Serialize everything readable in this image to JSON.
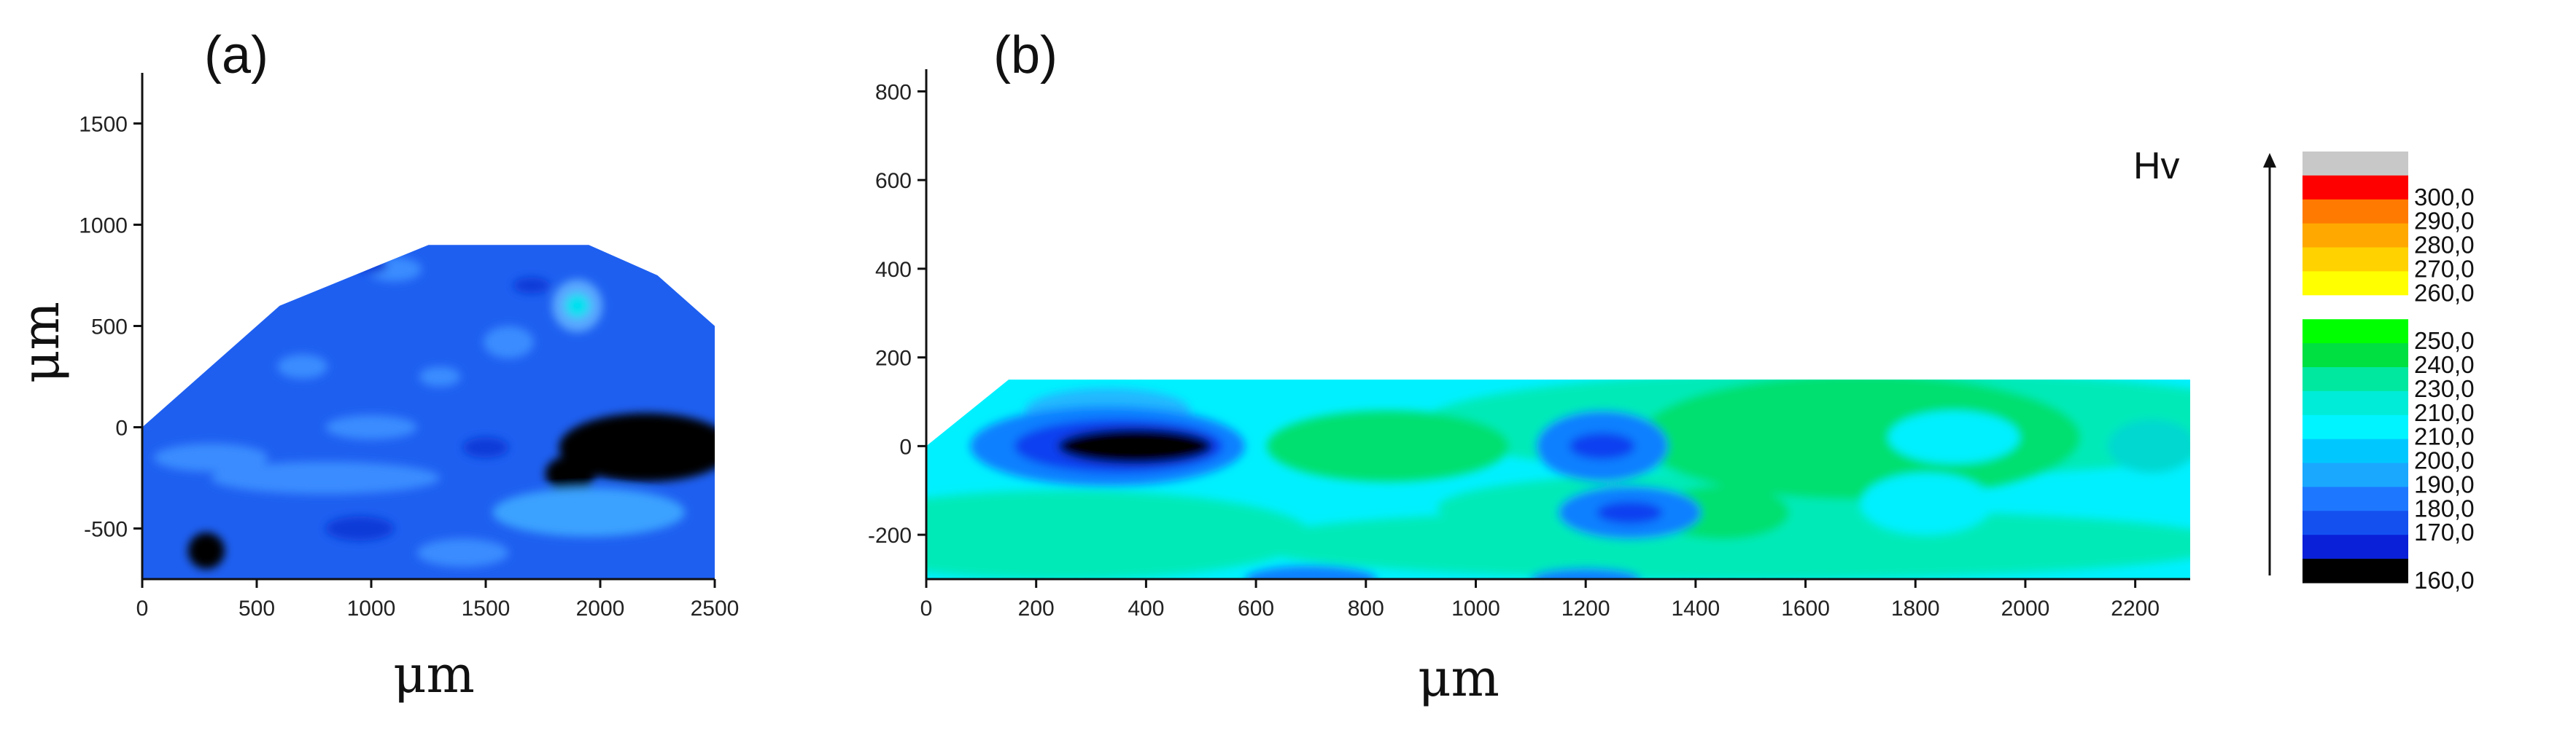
{
  "chart_data": [
    {
      "type": "heatmap",
      "panel_label": "(a)",
      "xlabel": "μm",
      "ylabel": "μm",
      "xlim": [
        0,
        2500
      ],
      "ylim": [
        -750,
        1750
      ],
      "xticks": [
        0,
        500,
        1000,
        1500,
        2000,
        2500
      ],
      "yticks": [
        -500,
        0,
        500,
        1000,
        1500
      ],
      "x_tick_labels": [
        "0",
        "500",
        "1000",
        "1500",
        "2000",
        "2500"
      ],
      "y_tick_labels": [
        "-500",
        "0",
        "500",
        "1000",
        "1500"
      ],
      "outline": [
        [
          0,
          0
        ],
        [
          600,
          600
        ],
        [
          1250,
          900
        ],
        [
          1950,
          900
        ],
        [
          2250,
          750
        ],
        [
          2500,
          500
        ],
        [
          2500,
          -750
        ],
        [
          0,
          -750
        ]
      ],
      "base_color": "#1e5ff0",
      "blobs": [
        {
          "cx": 2200,
          "cy": -100,
          "rx": 380,
          "ry": 170,
          "color": "#000000"
        },
        {
          "cx": 1870,
          "cy": -230,
          "rx": 110,
          "ry": 90,
          "color": "#000000"
        },
        {
          "cx": 280,
          "cy": -610,
          "rx": 80,
          "ry": 90,
          "color": "#000000"
        },
        {
          "cx": 1900,
          "cy": 600,
          "rx": 110,
          "ry": 130,
          "color": "#5aa8ff"
        },
        {
          "cx": 1900,
          "cy": 600,
          "rx": 55,
          "ry": 60,
          "color": "#00e0f0"
        },
        {
          "cx": 1950,
          "cy": -420,
          "rx": 420,
          "ry": 120,
          "color": "#3aa2ff"
        },
        {
          "cx": 800,
          "cy": -250,
          "rx": 500,
          "ry": 80,
          "color": "#3a8cff"
        },
        {
          "cx": 300,
          "cy": -150,
          "rx": 250,
          "ry": 70,
          "color": "#3a8cff"
        },
        {
          "cx": 1000,
          "cy": 0,
          "rx": 200,
          "ry": 60,
          "color": "#3a8cff"
        },
        {
          "cx": 700,
          "cy": 300,
          "rx": 110,
          "ry": 60,
          "color": "#3a8cff"
        },
        {
          "cx": 1300,
          "cy": 250,
          "rx": 90,
          "ry": 50,
          "color": "#3a8cff"
        },
        {
          "cx": 1600,
          "cy": 420,
          "rx": 110,
          "ry": 80,
          "color": "#3a8cff"
        },
        {
          "cx": 1100,
          "cy": 780,
          "rx": 120,
          "ry": 60,
          "color": "#3a8cff"
        },
        {
          "cx": 1400,
          "cy": -620,
          "rx": 200,
          "ry": 70,
          "color": "#3a8cff"
        },
        {
          "cx": 950,
          "cy": -500,
          "rx": 150,
          "ry": 60,
          "color": "#0a3ad8"
        },
        {
          "cx": 1000,
          "cy": 800,
          "rx": 70,
          "ry": 40,
          "color": "#0a3ad8"
        },
        {
          "cx": 1700,
          "cy": 700,
          "rx": 80,
          "ry": 40,
          "color": "#0a3ad8"
        },
        {
          "cx": 1500,
          "cy": -100,
          "rx": 100,
          "ry": 50,
          "color": "#0a3ad8"
        }
      ]
    },
    {
      "type": "heatmap",
      "panel_label": "(b)",
      "xlabel": "μm",
      "ylabel": "",
      "xlim": [
        0,
        2300
      ],
      "ylim": [
        -300,
        850
      ],
      "xticks": [
        0,
        200,
        400,
        600,
        800,
        1000,
        1200,
        1400,
        1600,
        1800,
        2000,
        2200
      ],
      "yticks": [
        -200,
        0,
        200,
        400,
        600,
        800
      ],
      "x_tick_labels": [
        "0",
        "200",
        "400",
        "600",
        "800",
        "1000",
        "1200",
        "1400",
        "1600",
        "1800",
        "2000",
        "2200"
      ],
      "y_tick_labels": [
        "-200",
        "0",
        "200",
        "400",
        "600",
        "800"
      ],
      "outline": [
        [
          0,
          0
        ],
        [
          150,
          150
        ],
        [
          2300,
          150
        ],
        [
          2300,
          -300
        ],
        [
          0,
          -300
        ]
      ],
      "base_color": "#00f0ff",
      "blobs": [
        {
          "cx": 1480,
          "cy": -220,
          "rx": 900,
          "ry": 80,
          "color": "#00eab8"
        },
        {
          "cx": 250,
          "cy": -200,
          "rx": 450,
          "ry": 100,
          "color": "#00eab8"
        },
        {
          "cx": 1700,
          "cy": 50,
          "rx": 800,
          "ry": 120,
          "color": "#00eab8"
        },
        {
          "cx": 1430,
          "cy": -140,
          "rx": 500,
          "ry": 80,
          "color": "#00eab8"
        },
        {
          "cx": 1700,
          "cy": 20,
          "rx": 400,
          "ry": 140,
          "color": "#00e070"
        },
        {
          "cx": 1450,
          "cy": -150,
          "rx": 120,
          "ry": 60,
          "color": "#00e070"
        },
        {
          "cx": 840,
          "cy": 0,
          "rx": 220,
          "ry": 80,
          "color": "#00e070"
        },
        {
          "cx": 1820,
          "cy": -130,
          "rx": 120,
          "ry": 70,
          "color": "#00f0ff"
        },
        {
          "cx": 1870,
          "cy": 20,
          "rx": 120,
          "ry": 60,
          "color": "#00f0ff"
        },
        {
          "cx": 2230,
          "cy": 0,
          "rx": 80,
          "ry": 60,
          "color": "#00d8d0"
        },
        {
          "cx": 330,
          "cy": 80,
          "rx": 150,
          "ry": 50,
          "color": "#20b8ff"
        },
        {
          "cx": 330,
          "cy": 0,
          "rx": 250,
          "ry": 90,
          "color": "#0a80ff"
        },
        {
          "cx": 350,
          "cy": 0,
          "rx": 190,
          "ry": 60,
          "color": "#1040f0"
        },
        {
          "cx": 380,
          "cy": 0,
          "rx": 140,
          "ry": 40,
          "color": "#000000"
        },
        {
          "cx": 1230,
          "cy": 0,
          "rx": 120,
          "ry": 80,
          "color": "#0a80ff"
        },
        {
          "cx": 1230,
          "cy": 0,
          "rx": 60,
          "ry": 30,
          "color": "#1040f0"
        },
        {
          "cx": 1280,
          "cy": -150,
          "rx": 130,
          "ry": 60,
          "color": "#0a80ff"
        },
        {
          "cx": 1280,
          "cy": -150,
          "rx": 60,
          "ry": 25,
          "color": "#1040f0"
        },
        {
          "cx": 700,
          "cy": -300,
          "rx": 120,
          "ry": 30,
          "color": "#0a80ff"
        },
        {
          "cx": 1200,
          "cy": -300,
          "rx": 100,
          "ry": 25,
          "color": "#0a80ff"
        }
      ]
    }
  ],
  "legend": {
    "title": "Hv",
    "bands": [
      {
        "color": "#c8c8c8",
        "label": ""
      },
      {
        "color": "#ff0000",
        "label": "300,0"
      },
      {
        "color": "#ff7a00",
        "label": "290,0"
      },
      {
        "color": "#ffa800",
        "label": "280,0"
      },
      {
        "color": "#ffd200",
        "label": "270,0"
      },
      {
        "color": "#ffff00",
        "label": "260,0"
      },
      {
        "color": "#ffffff",
        "label": ""
      },
      {
        "color": "#00ff00",
        "label": "250,0"
      },
      {
        "color": "#00e040",
        "label": "240,0"
      },
      {
        "color": "#00e8a0",
        "label": "230,0"
      },
      {
        "color": "#00ecd8",
        "label": "210,0"
      },
      {
        "color": "#00f4ff",
        "label": "210,0"
      },
      {
        "color": "#00c8ff",
        "label": "200,0"
      },
      {
        "color": "#1aa8ff",
        "label": "190,0"
      },
      {
        "color": "#1e78ff",
        "label": "180,0"
      },
      {
        "color": "#1450f0",
        "label": "170,0"
      },
      {
        "color": "#0a20d8",
        "label": ""
      },
      {
        "color": "#000000",
        "label": "160,0"
      }
    ]
  }
}
